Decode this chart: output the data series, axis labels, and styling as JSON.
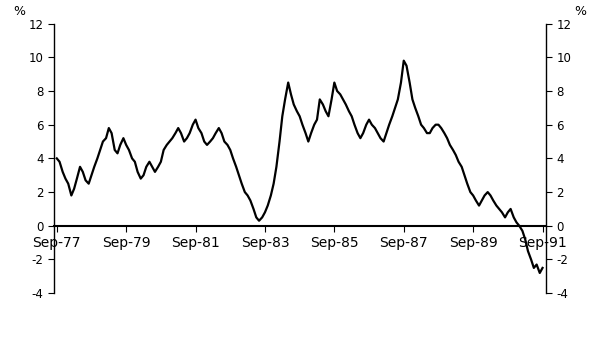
{
  "title": "",
  "ylabel_left": "%",
  "ylabel_right": "%",
  "ylim": [
    -4,
    12
  ],
  "yticks": [
    -4,
    -2,
    0,
    2,
    4,
    6,
    8,
    10,
    12
  ],
  "xtick_labels": [
    "Sep-77",
    "Sep-79",
    "Sep-81",
    "Sep-83",
    "Sep-85",
    "Sep-87",
    "Sep-89",
    "Sep-91"
  ],
  "xtick_positions": [
    1977.75,
    1979.75,
    1981.75,
    1983.75,
    1985.75,
    1987.75,
    1989.75,
    1991.75
  ],
  "line_color": "#000000",
  "line_width": 1.6,
  "background_color": "#ffffff",
  "x_start": 1977.67,
  "x_end": 1991.85,
  "data_points": [
    [
      1977.75,
      4.0
    ],
    [
      1977.83,
      3.8
    ],
    [
      1977.92,
      3.2
    ],
    [
      1978.0,
      2.8
    ],
    [
      1978.08,
      2.5
    ],
    [
      1978.17,
      1.8
    ],
    [
      1978.25,
      2.2
    ],
    [
      1978.33,
      2.8
    ],
    [
      1978.42,
      3.5
    ],
    [
      1978.5,
      3.2
    ],
    [
      1978.58,
      2.7
    ],
    [
      1978.67,
      2.5
    ],
    [
      1978.75,
      3.0
    ],
    [
      1978.83,
      3.5
    ],
    [
      1978.92,
      4.0
    ],
    [
      1979.0,
      4.5
    ],
    [
      1979.08,
      5.0
    ],
    [
      1979.17,
      5.2
    ],
    [
      1979.25,
      5.8
    ],
    [
      1979.33,
      5.5
    ],
    [
      1979.42,
      4.5
    ],
    [
      1979.5,
      4.3
    ],
    [
      1979.58,
      4.8
    ],
    [
      1979.67,
      5.2
    ],
    [
      1979.75,
      4.8
    ],
    [
      1979.83,
      4.5
    ],
    [
      1979.92,
      4.0
    ],
    [
      1980.0,
      3.8
    ],
    [
      1980.08,
      3.2
    ],
    [
      1980.17,
      2.8
    ],
    [
      1980.25,
      3.0
    ],
    [
      1980.33,
      3.5
    ],
    [
      1980.42,
      3.8
    ],
    [
      1980.5,
      3.5
    ],
    [
      1980.58,
      3.2
    ],
    [
      1980.67,
      3.5
    ],
    [
      1980.75,
      3.8
    ],
    [
      1980.83,
      4.5
    ],
    [
      1980.92,
      4.8
    ],
    [
      1981.0,
      5.0
    ],
    [
      1981.08,
      5.2
    ],
    [
      1981.17,
      5.5
    ],
    [
      1981.25,
      5.8
    ],
    [
      1981.33,
      5.5
    ],
    [
      1981.42,
      5.0
    ],
    [
      1981.5,
      5.2
    ],
    [
      1981.58,
      5.5
    ],
    [
      1981.67,
      6.0
    ],
    [
      1981.75,
      6.3
    ],
    [
      1981.83,
      5.8
    ],
    [
      1981.92,
      5.5
    ],
    [
      1982.0,
      5.0
    ],
    [
      1982.08,
      4.8
    ],
    [
      1982.17,
      5.0
    ],
    [
      1982.25,
      5.2
    ],
    [
      1982.33,
      5.5
    ],
    [
      1982.42,
      5.8
    ],
    [
      1982.5,
      5.5
    ],
    [
      1982.58,
      5.0
    ],
    [
      1982.67,
      4.8
    ],
    [
      1982.75,
      4.5
    ],
    [
      1982.83,
      4.0
    ],
    [
      1982.92,
      3.5
    ],
    [
      1983.0,
      3.0
    ],
    [
      1983.08,
      2.5
    ],
    [
      1983.17,
      2.0
    ],
    [
      1983.25,
      1.8
    ],
    [
      1983.33,
      1.5
    ],
    [
      1983.42,
      1.0
    ],
    [
      1983.5,
      0.5
    ],
    [
      1983.58,
      0.3
    ],
    [
      1983.67,
      0.5
    ],
    [
      1983.75,
      0.8
    ],
    [
      1983.83,
      1.2
    ],
    [
      1983.92,
      1.8
    ],
    [
      1984.0,
      2.5
    ],
    [
      1984.08,
      3.5
    ],
    [
      1984.17,
      5.0
    ],
    [
      1984.25,
      6.5
    ],
    [
      1984.33,
      7.5
    ],
    [
      1984.42,
      8.5
    ],
    [
      1984.5,
      7.8
    ],
    [
      1984.58,
      7.2
    ],
    [
      1984.67,
      6.8
    ],
    [
      1984.75,
      6.5
    ],
    [
      1984.83,
      6.0
    ],
    [
      1984.92,
      5.5
    ],
    [
      1985.0,
      5.0
    ],
    [
      1985.08,
      5.5
    ],
    [
      1985.17,
      6.0
    ],
    [
      1985.25,
      6.3
    ],
    [
      1985.33,
      7.5
    ],
    [
      1985.42,
      7.2
    ],
    [
      1985.5,
      6.8
    ],
    [
      1985.58,
      6.5
    ],
    [
      1985.67,
      7.5
    ],
    [
      1985.75,
      8.5
    ],
    [
      1985.83,
      8.0
    ],
    [
      1985.92,
      7.8
    ],
    [
      1986.0,
      7.5
    ],
    [
      1986.08,
      7.2
    ],
    [
      1986.17,
      6.8
    ],
    [
      1986.25,
      6.5
    ],
    [
      1986.33,
      6.0
    ],
    [
      1986.42,
      5.5
    ],
    [
      1986.5,
      5.2
    ],
    [
      1986.58,
      5.5
    ],
    [
      1986.67,
      6.0
    ],
    [
      1986.75,
      6.3
    ],
    [
      1986.83,
      6.0
    ],
    [
      1986.92,
      5.8
    ],
    [
      1987.0,
      5.5
    ],
    [
      1987.08,
      5.2
    ],
    [
      1987.17,
      5.0
    ],
    [
      1987.25,
      5.5
    ],
    [
      1987.33,
      6.0
    ],
    [
      1987.42,
      6.5
    ],
    [
      1987.5,
      7.0
    ],
    [
      1987.58,
      7.5
    ],
    [
      1987.67,
      8.5
    ],
    [
      1987.75,
      9.8
    ],
    [
      1987.83,
      9.5
    ],
    [
      1987.92,
      8.5
    ],
    [
      1988.0,
      7.5
    ],
    [
      1988.08,
      7.0
    ],
    [
      1988.17,
      6.5
    ],
    [
      1988.25,
      6.0
    ],
    [
      1988.33,
      5.8
    ],
    [
      1988.42,
      5.5
    ],
    [
      1988.5,
      5.5
    ],
    [
      1988.58,
      5.8
    ],
    [
      1988.67,
      6.0
    ],
    [
      1988.75,
      6.0
    ],
    [
      1988.83,
      5.8
    ],
    [
      1988.92,
      5.5
    ],
    [
      1989.0,
      5.2
    ],
    [
      1989.08,
      4.8
    ],
    [
      1989.17,
      4.5
    ],
    [
      1989.25,
      4.2
    ],
    [
      1989.33,
      3.8
    ],
    [
      1989.42,
      3.5
    ],
    [
      1989.5,
      3.0
    ],
    [
      1989.58,
      2.5
    ],
    [
      1989.67,
      2.0
    ],
    [
      1989.75,
      1.8
    ],
    [
      1989.83,
      1.5
    ],
    [
      1989.92,
      1.2
    ],
    [
      1990.0,
      1.5
    ],
    [
      1990.08,
      1.8
    ],
    [
      1990.17,
      2.0
    ],
    [
      1990.25,
      1.8
    ],
    [
      1990.33,
      1.5
    ],
    [
      1990.42,
      1.2
    ],
    [
      1990.5,
      1.0
    ],
    [
      1990.58,
      0.8
    ],
    [
      1990.67,
      0.5
    ],
    [
      1990.75,
      0.8
    ],
    [
      1990.83,
      1.0
    ],
    [
      1990.92,
      0.5
    ],
    [
      1991.0,
      0.2
    ],
    [
      1991.08,
      0.0
    ],
    [
      1991.17,
      -0.3
    ],
    [
      1991.25,
      -0.8
    ],
    [
      1991.33,
      -1.5
    ],
    [
      1991.42,
      -2.0
    ],
    [
      1991.5,
      -2.5
    ],
    [
      1991.58,
      -2.3
    ],
    [
      1991.67,
      -2.8
    ],
    [
      1991.75,
      -2.5
    ]
  ]
}
